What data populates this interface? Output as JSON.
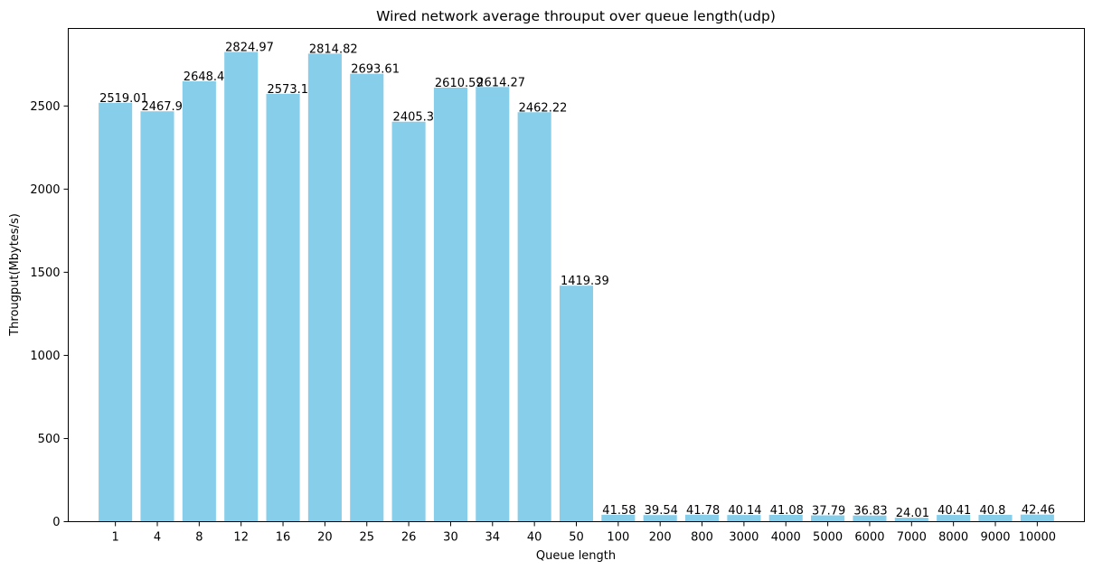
{
  "chart_data": {
    "type": "bar",
    "title": "Wired network average throuput over queue length(udp)",
    "xlabel": "Queue length",
    "ylabel": "Througput(Mbytes/s)",
    "categories": [
      "1",
      "4",
      "8",
      "12",
      "16",
      "20",
      "25",
      "26",
      "30",
      "34",
      "40",
      "50",
      "100",
      "200",
      "800",
      "3000",
      "4000",
      "5000",
      "6000",
      "7000",
      "8000",
      "9000",
      "10000"
    ],
    "values": [
      2519.01,
      2467.9,
      2648.42,
      2824.97,
      2573.12,
      2814.82,
      2693.61,
      2405.33,
      2610.59,
      2614.27,
      2462.22,
      1419.39,
      41.58,
      39.54,
      41.78,
      40.14,
      41.08,
      37.79,
      36.83,
      24.01,
      40.41,
      40.8,
      42.46
    ],
    "value_labels": [
      "2519.01",
      "2467.9",
      "2648.42",
      "2824.97",
      "2573.12",
      "2814.82",
      "2693.61",
      "2405.33",
      "2610.59",
      "2614.27",
      "2462.22",
      "1419.39",
      "41.58",
      "39.54",
      "41.78",
      "40.14",
      "41.08",
      "37.79",
      "36.83",
      "24.01",
      "40.41",
      "40.8",
      "42.46"
    ],
    "ylim": [
      0,
      2966.22
    ],
    "yticks": [
      0,
      500,
      1000,
      1500,
      2000,
      2500
    ],
    "bar_color": "#87CEEB",
    "grid": false,
    "legend": "none"
  }
}
